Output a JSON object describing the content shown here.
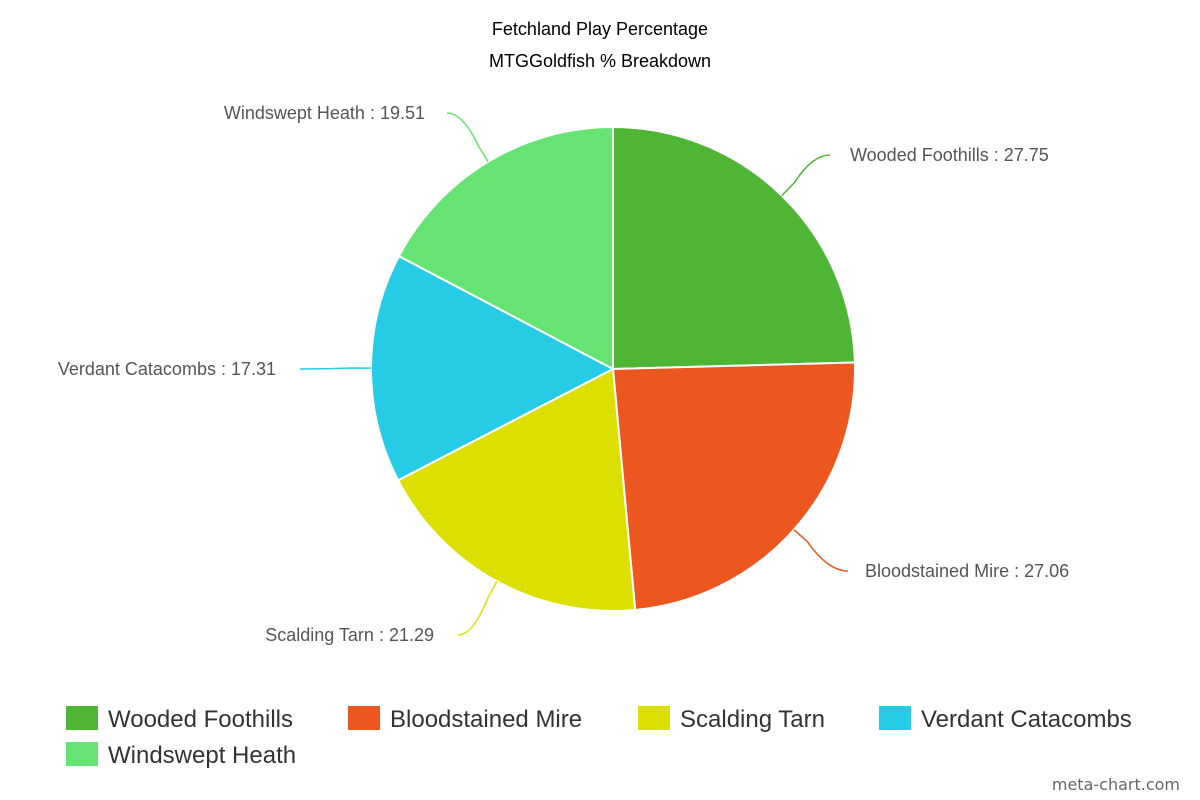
{
  "chart_data": {
    "type": "pie",
    "title": "Fetchland Play Percentage",
    "subtitle": "MTGGoldfish % Breakdown",
    "slices": [
      {
        "label": "Wooded Foothills",
        "value": 27.75,
        "color": "#4fb535"
      },
      {
        "label": "Bloodstained Mire",
        "value": 27.06,
        "color": "#ec561f"
      },
      {
        "label": "Scalding Tarn",
        "value": 21.29,
        "color": "#dbe000"
      },
      {
        "label": "Verdant Catacombs",
        "value": 17.31,
        "color": "#26cbe5"
      },
      {
        "label": "Windswept Heath",
        "value": 19.51,
        "color": "#66e473"
      }
    ],
    "label_separator": " : ",
    "legend_position": "bottom"
  },
  "watermark": "meta-chart.com"
}
